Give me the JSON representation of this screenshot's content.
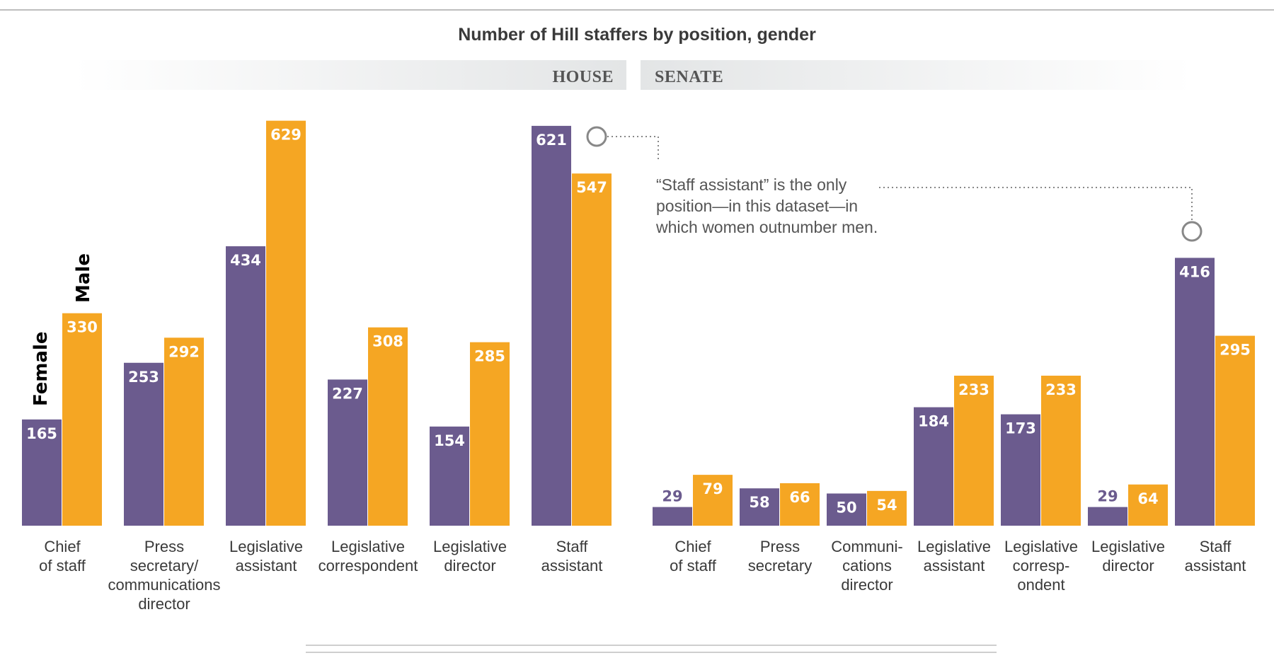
{
  "colors": {
    "female": "#6b5b8e",
    "male": "#f5a623",
    "grid": "#bbbbbb",
    "annotation": "#888888"
  },
  "chart_data": {
    "type": "bar",
    "title": "Number of Hill staffers by position, gender",
    "legend": {
      "female": "Female",
      "male": "Male",
      "placement": "left, rotated vertical"
    },
    "annotation": [
      "“Staff assistant” is the only",
      "position—in this dataset—in",
      "which women outnumber men."
    ],
    "panels": [
      {
        "label": "HOUSE",
        "categories": [
          [
            "Chief",
            "of staff"
          ],
          [
            "Press",
            "secretary/",
            "communications",
            "director"
          ],
          [
            "Legislative",
            "assistant"
          ],
          [
            "Legislative",
            "correspondent"
          ],
          [
            "Legislative",
            "director"
          ],
          [
            "Staff",
            "assistant"
          ]
        ],
        "series": [
          {
            "name": "Female",
            "values": [
              165,
              253,
              434,
              227,
              154,
              621
            ]
          },
          {
            "name": "Male",
            "values": [
              330,
              292,
              629,
              308,
              285,
              547
            ]
          }
        ]
      },
      {
        "label": "SENATE",
        "categories": [
          [
            "Chief",
            "of staff"
          ],
          [
            "Press",
            "secretary"
          ],
          [
            "Communi-",
            "cations",
            "director"
          ],
          [
            "Legislative",
            "assistant"
          ],
          [
            "Legislative",
            "corresp-",
            "ondent"
          ],
          [
            "Legislative",
            "director"
          ],
          [
            "Staff",
            "assistant"
          ]
        ],
        "series": [
          {
            "name": "Female",
            "values": [
              29,
              58,
              50,
              184,
              173,
              29,
              416
            ]
          },
          {
            "name": "Male",
            "values": [
              79,
              66,
              54,
              233,
              233,
              64,
              295
            ]
          }
        ]
      }
    ]
  }
}
